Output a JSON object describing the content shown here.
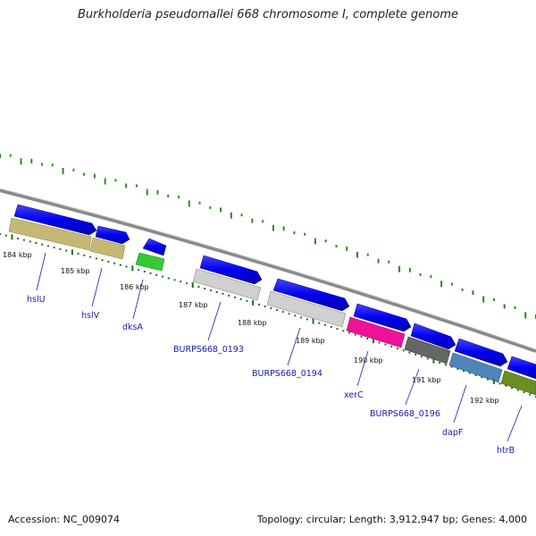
{
  "title": "Burkholderia pseudomallei 668 chromosome I, complete genome",
  "footer": {
    "accession": "Accession: NC_009074",
    "summary": "Topology: circular; Length: 3,912,947 bp; Genes: 4,000"
  },
  "colors": {
    "backbone": "#808080",
    "cds_arrow": "#0000ee",
    "gc_ticks": "#2e8b1e",
    "gene_label": "#1a1aa8",
    "ring_tan": "#c4b877",
    "ring_green": "#33cc33",
    "ring_light_gray": "#d0d0d0",
    "ring_magenta": "#ee1199",
    "ring_dark_gray": "#666666",
    "ring_steel_blue": "#4f86b8",
    "ring_olive": "#6b8e23"
  },
  "scale_labels": [
    "184 kbp",
    "185 kbp",
    "186 kbp",
    "187 kbp",
    "188 kbp",
    "189 kbp",
    "190 kbp",
    "191 kbp",
    "192 kbp"
  ],
  "genes": [
    {
      "label": "hslU",
      "color_role": "ring_tan"
    },
    {
      "label": "hslV",
      "color_role": "ring_tan"
    },
    {
      "label": "dksA",
      "color_role": "ring_green"
    },
    {
      "label": "BURPS668_0193",
      "color_role": "ring_light_gray"
    },
    {
      "label": "BURPS668_0194",
      "color_role": "ring_light_gray"
    },
    {
      "label": "xerC",
      "color_role": "ring_magenta"
    },
    {
      "label": "BURPS668_0196",
      "color_role": "ring_dark_gray"
    },
    {
      "label": "dapF",
      "color_role": "ring_steel_blue"
    },
    {
      "label": "htrB",
      "color_role": "ring_olive"
    }
  ]
}
